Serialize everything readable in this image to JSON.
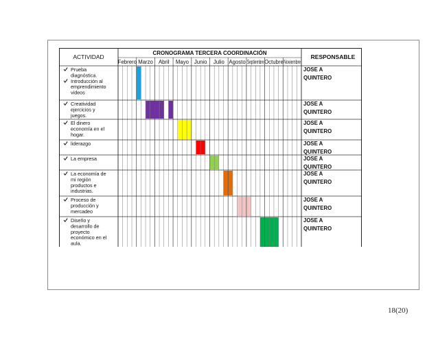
{
  "header": {
    "activity_label": "ACTIVIDAD",
    "schedule_title": "CRONOGRAMA TERCERA COORDINACIÓN",
    "responsible_label": "RESPONSABLE"
  },
  "months": [
    "Febrero",
    "Marzo",
    "Abril",
    "Mayo",
    "Junio",
    "Julio",
    "Agosto",
    "Septiembre",
    "Octubre",
    "Noviembre"
  ],
  "weeks_per_month": 4,
  "rows": [
    {
      "lines": [
        "Prueba",
        "diagnóstica.",
        "Introducción al",
        "emprendimiento",
        "videos"
      ],
      "bullets": [
        0,
        2
      ],
      "responsible": [
        "JOSE A",
        "QUINTERO"
      ],
      "color": "#1aa3e0",
      "weeks": [
        [
          4,
          5
        ]
      ]
    },
    {
      "lines": [
        "Creatividad",
        "ejercicios y",
        "juegos."
      ],
      "bullets": [
        0
      ],
      "responsible": [
        "JOSE A",
        "QUINTERO"
      ],
      "color": "#7030a0",
      "weeks": [
        [
          6,
          10
        ],
        [
          11,
          12
        ]
      ]
    },
    {
      "lines": [
        "El dinero",
        "economía en el",
        "hogar."
      ],
      "bullets": [
        0
      ],
      "responsible": [
        "JOSE A",
        "QUINTERO"
      ],
      "color": "#ffff00",
      "weeks": [
        [
          13,
          16
        ]
      ]
    },
    {
      "lines": [
        "liderazgo"
      ],
      "bullets": [
        0
      ],
      "responsible": [
        "JOSE A",
        "QUINTERO"
      ],
      "color": "#ff0000",
      "weeks": [
        [
          17,
          19
        ]
      ]
    },
    {
      "lines": [
        "La empresa"
      ],
      "bullets": [
        0
      ],
      "responsible": [
        "JOSE A",
        "QUINTERO"
      ],
      "color": "#92d050",
      "weeks": [
        [
          20,
          22
        ]
      ]
    },
    {
      "lines": [
        "La economía de",
        "mi región",
        "productos e",
        "industrias."
      ],
      "bullets": [
        0
      ],
      "responsible": [
        "JOSE A",
        "QUINTERO"
      ],
      "color": "#e36c09",
      "weeks": [
        [
          23,
          25
        ]
      ]
    },
    {
      "lines": [
        "Proceso de",
        "producción y",
        "mercadeo"
      ],
      "bullets": [
        0
      ],
      "responsible": [
        "JOSE A",
        "QUINTERO"
      ],
      "color": "#f2c4c4",
      "weeks": [
        [
          26,
          29
        ]
      ]
    },
    {
      "lines": [
        "Diseño y",
        "desarrollo de",
        "proyecto",
        "económico en el",
        "aula."
      ],
      "bullets": [
        0
      ],
      "responsible": [
        "JOSE A",
        "QUINTERO"
      ],
      "color": "#00b050",
      "weeks": [
        [
          31,
          35
        ]
      ]
    }
  ],
  "footer": {
    "page": "18(20)"
  }
}
